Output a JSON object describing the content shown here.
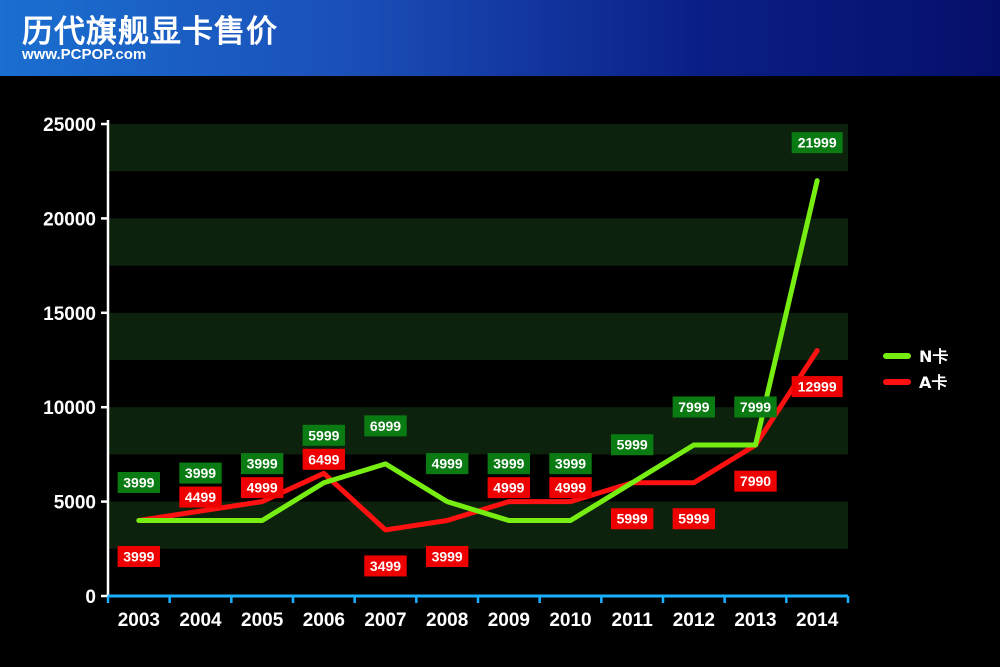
{
  "header": {
    "title": "历代旗舰显卡售价",
    "site": "www.PCPOP.com"
  },
  "chart_data": {
    "type": "line",
    "title": "",
    "xlabel": "",
    "ylabel": "",
    "x": [
      "2003",
      "2004",
      "2005",
      "2006",
      "2007",
      "2008",
      "2009",
      "2010",
      "2011",
      "2012",
      "2013",
      "2014"
    ],
    "ylim": [
      0,
      25000
    ],
    "yticks": [
      0,
      5000,
      10000,
      15000,
      20000,
      25000
    ],
    "grid": "alternating horizontal bands",
    "legend_position": "right",
    "series": [
      {
        "name": "N卡",
        "color": "#77ee11",
        "label_color": "#0a7a12",
        "values": [
          3999,
          3999,
          3999,
          5999,
          6999,
          4999,
          3999,
          3999,
          5999,
          7999,
          7999,
          21999
        ],
        "labels": [
          "3999",
          "3999",
          "3999",
          "5999",
          "6999",
          "4999",
          "3999",
          "3999",
          "5999",
          "7999",
          "7999",
          "21999"
        ]
      },
      {
        "name": "A卡",
        "color": "#ff1111",
        "label_color": "#ee0000",
        "values": [
          3999,
          4499,
          4999,
          6499,
          3499,
          3999,
          4999,
          4999,
          5999,
          5999,
          7990,
          12999
        ],
        "labels": [
          "3999",
          "4499",
          "4999",
          "6499",
          "3499",
          "3999",
          "4999",
          "4999",
          "5999",
          "5999",
          "7990",
          "12999"
        ]
      }
    ]
  }
}
